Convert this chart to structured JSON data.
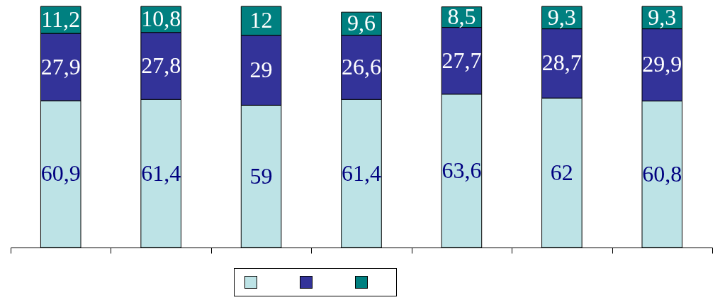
{
  "chart_data": {
    "type": "bar",
    "stacked": true,
    "categories": [
      null,
      null,
      null,
      null,
      null,
      null,
      null
    ],
    "series": [
      {
        "color": "#bde3e6",
        "values": [
          60.9,
          61.4,
          59,
          61.4,
          63.6,
          62,
          60.8
        ],
        "value_labels": [
          "60,9",
          "61,4",
          "59",
          "61,4",
          "63,6",
          "62",
          "60,8"
        ]
      },
      {
        "color": "#333399",
        "values": [
          27.9,
          27.8,
          29,
          26.6,
          27.7,
          28.7,
          29.9
        ],
        "value_labels": [
          "27,9",
          "27,8",
          "29",
          "26,6",
          "27,7",
          "28,7",
          "29,9"
        ]
      },
      {
        "color": "#008080",
        "values": [
          11.2,
          10.8,
          12,
          9.6,
          8.5,
          9.3,
          9.3
        ],
        "value_labels": [
          "11,2",
          "10,8",
          "12",
          "9,6",
          "8,5",
          "9,3",
          "9,3"
        ]
      }
    ],
    "grid": false
  }
}
